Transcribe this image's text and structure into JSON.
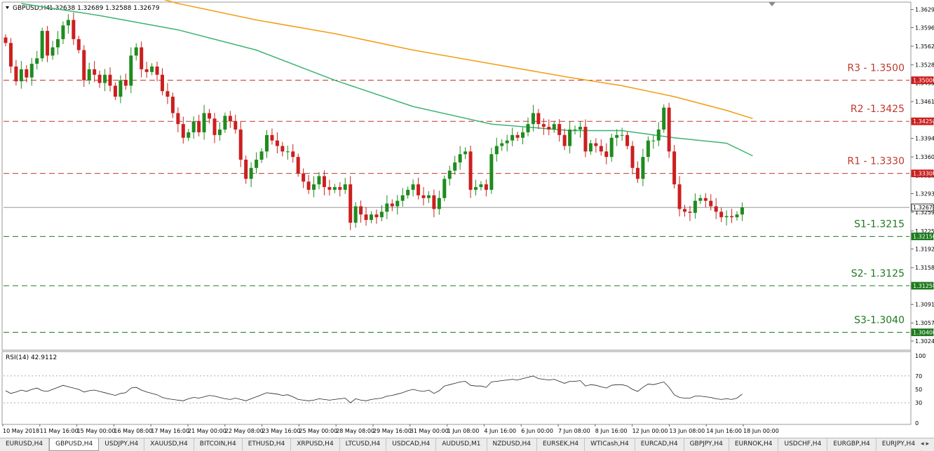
{
  "header": {
    "symbol": "GBPUSD,H4",
    "ohlc": "1.32638 1.32689 1.32588 1.32679"
  },
  "chart_data": {
    "type": "candlestick",
    "symbol": "GBPUSD",
    "timeframe": "H4",
    "ohlc_last": {
      "open": 1.32638,
      "high": 1.32689,
      "low": 1.32588,
      "close": 1.32679
    },
    "y_ticks": [
      "1.36290",
      "1.35960",
      "1.35620",
      "1.35280",
      "1.34950",
      "1.34610",
      "1.34280",
      "1.33940",
      "1.33600",
      "1.33260",
      "1.32930",
      "1.32590",
      "1.32250",
      "1.31920",
      "1.31580",
      "1.31240",
      "1.30910",
      "1.30570",
      "1.30240"
    ],
    "ylim": [
      1.301,
      1.364
    ],
    "x_ticks": [
      "10 May 2018",
      "11 May 16:00",
      "15 May 00:00",
      "16 May 08:00",
      "17 May 16:00",
      "21 May 00:00",
      "22 May 08:00",
      "23 May 16:00",
      "25 May 00:00",
      "28 May 08:00",
      "29 May 16:00",
      "31 May 00:00",
      "1 Jun 08:00",
      "4 Jun 16:00",
      "6 Jun 00:00",
      "7 Jun 08:00",
      "8 Jun 16:00",
      "12 Jun 00:00",
      "13 Jun 08:00",
      "14 Jun 16:00",
      "18 Jun 00:00"
    ],
    "price_tags": [
      "1.35000",
      "1.34250",
      "1.33300",
      "1.32679",
      "1.32150",
      "1.31250",
      "1.30400"
    ],
    "levels": [
      {
        "label": "R3 - 1.3500",
        "value": 1.35,
        "color": "#c0392b"
      },
      {
        "label": "R2 -1.3425",
        "value": 1.3425,
        "color": "#c0392b"
      },
      {
        "label": "R1 - 1.3330",
        "value": 1.333,
        "color": "#c0392b"
      },
      {
        "label": "S1-1.3215",
        "value": 1.3215,
        "color": "#1e7a1e"
      },
      {
        "label": "S2- 1.3125",
        "value": 1.3125,
        "color": "#1e7a1e"
      },
      {
        "label": "S3-1.3040",
        "value": 1.304,
        "color": "#1e7a1e"
      }
    ],
    "current_price": 1.32679,
    "closes": [
      1.3568,
      1.3525,
      1.3498,
      1.352,
      1.3505,
      1.353,
      1.354,
      1.359,
      1.3545,
      1.356,
      1.3575,
      1.36,
      1.361,
      1.3575,
      1.3555,
      1.35,
      1.352,
      1.351,
      1.3495,
      1.351,
      1.349,
      1.347,
      1.35,
      1.349,
      1.3545,
      1.356,
      1.352,
      1.3515,
      1.3525,
      1.351,
      1.348,
      1.347,
      1.344,
      1.342,
      1.3395,
      1.3405,
      1.3425,
      1.3405,
      1.344,
      1.343,
      1.34,
      1.341,
      1.3435,
      1.3425,
      1.341,
      1.3355,
      1.332,
      1.334,
      1.3355,
      1.337,
      1.34,
      1.339,
      1.338,
      1.337,
      1.337,
      1.336,
      1.333,
      1.3315,
      1.33,
      1.331,
      1.3325,
      1.3305,
      1.33,
      1.3305,
      1.33,
      1.331,
      1.324,
      1.327,
      1.3255,
      1.3245,
      1.3255,
      1.325,
      1.326,
      1.3275,
      1.327,
      1.328,
      1.329,
      1.33,
      1.331,
      1.329,
      1.3285,
      1.329,
      1.3265,
      1.3285,
      1.332,
      1.3335,
      1.335,
      1.3365,
      1.337,
      1.33,
      1.3305,
      1.331,
      1.33,
      1.3365,
      1.338,
      1.3385,
      1.339,
      1.34,
      1.3395,
      1.3405,
      1.342,
      1.344,
      1.342,
      1.3415,
      1.341,
      1.342,
      1.34,
      1.338,
      1.341,
      1.341,
      1.3415,
      1.337,
      1.3385,
      1.338,
      1.337,
      1.336,
      1.3395,
      1.34,
      1.34,
      1.338,
      1.334,
      1.332,
      1.336,
      1.339,
      1.339,
      1.341,
      1.345,
      1.337,
      1.331,
      1.3265,
      1.326,
      1.3258,
      1.328,
      1.3285,
      1.328,
      1.327,
      1.326,
      1.325,
      1.3252,
      1.325,
      1.3255,
      1.3268
    ],
    "ma_green": [
      [
        3,
        1.364
      ],
      [
        18,
        1.3618
      ],
      [
        33,
        1.3592
      ],
      [
        48,
        1.3555
      ],
      [
        63,
        1.35
      ],
      [
        78,
        1.3452
      ],
      [
        93,
        1.342
      ],
      [
        108,
        1.3408
      ],
      [
        118,
        1.3408
      ],
      [
        128,
        1.3395
      ],
      [
        138,
        1.3385
      ],
      [
        143,
        1.3362
      ]
    ],
    "ma_orange": [
      [
        3,
        1.372
      ],
      [
        18,
        1.368
      ],
      [
        33,
        1.364
      ],
      [
        48,
        1.361
      ],
      [
        63,
        1.3585
      ],
      [
        78,
        1.3555
      ],
      [
        93,
        1.353
      ],
      [
        108,
        1.3505
      ],
      [
        118,
        1.349
      ],
      [
        128,
        1.347
      ],
      [
        138,
        1.3445
      ],
      [
        143,
        1.343
      ]
    ],
    "rsi": {
      "label": "RSI(14) 42.9112",
      "period": 14,
      "value": 42.9112,
      "ylim": [
        0,
        100
      ],
      "levels": [
        30,
        70
      ],
      "ticks": [
        "100",
        "70",
        "50",
        "30",
        "0"
      ],
      "values": [
        48,
        44,
        46,
        49,
        47,
        50,
        52,
        48,
        47,
        50,
        53,
        56,
        54,
        52,
        50,
        46,
        48,
        49,
        47,
        45,
        43,
        41,
        44,
        45,
        52,
        53,
        49,
        46,
        44,
        42,
        38,
        36,
        35,
        34,
        33,
        36,
        38,
        37,
        39,
        41,
        40,
        38,
        36,
        35,
        37,
        35,
        33,
        36,
        39,
        42,
        45,
        44,
        43,
        41,
        42,
        39,
        35,
        34,
        33,
        34,
        36,
        35,
        34,
        35,
        36,
        37,
        30,
        36,
        34,
        33,
        35,
        36,
        37,
        40,
        41,
        43,
        45,
        48,
        50,
        48,
        47,
        49,
        44,
        48,
        55,
        57,
        59,
        61,
        62,
        56,
        55,
        55,
        53,
        61,
        62,
        63,
        64,
        65,
        64,
        66,
        68,
        70,
        66,
        65,
        64,
        65,
        62,
        59,
        62,
        62,
        63,
        55,
        57,
        56,
        54,
        52,
        56,
        57,
        57,
        55,
        50,
        47,
        53,
        58,
        57,
        59,
        61,
        53,
        42,
        38,
        37,
        37,
        40,
        40,
        39,
        38,
        36,
        35,
        36,
        35,
        37,
        43
      ]
    }
  },
  "tabs": [
    "EURUSD,H4",
    "GBPUSD,H4",
    "USDJPY,H4",
    "XAUUSD,H4",
    "BITCOIN,H4",
    "ETHUSD,H4",
    "XRPUSD,H4",
    "LTCUSD,H4",
    "USDCAD,H4",
    "AUDUSD,M1",
    "NZDUSD,H4",
    "EURSEK,H4",
    "WTICash,H4",
    "EURCAD,H4",
    "GBPJPY,H4",
    "EURNOK,H4",
    "USDCHF,H4",
    "EURGBP,H4",
    "EURJPY,H4"
  ],
  "active_tab": 1,
  "colors": {
    "bull": "#1e8c1e",
    "bear": "#cc1f1f",
    "ma_green": "#3cb371",
    "ma_orange": "#f39c12"
  }
}
